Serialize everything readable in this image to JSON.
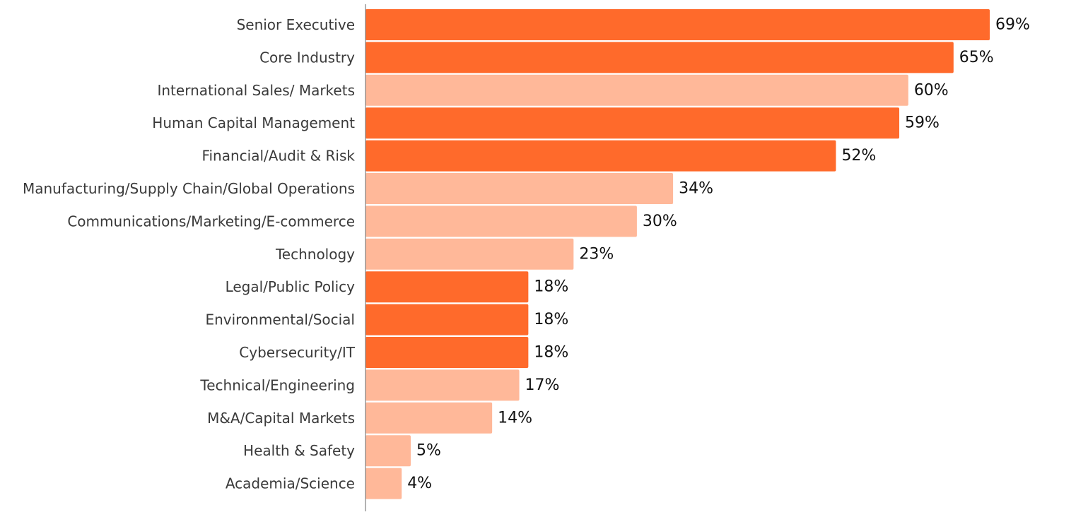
{
  "chart_data": {
    "type": "bar",
    "orientation": "horizontal",
    "categories": [
      "Senior Executive",
      "Core Industry",
      "International Sales/ Markets",
      "Human Capital Management",
      "Financial/Audit & Risk",
      "Manufacturing/Supply Chain/Global Operations",
      "Communications/Marketing/E-commerce",
      "Technology",
      "Legal/Public Policy",
      "Environmental/Social",
      "Cybersecurity/IT",
      "Technical/Engineering",
      "M&A/Capital Markets",
      "Health & Safety",
      "Academia/Science"
    ],
    "values": [
      69,
      65,
      60,
      59,
      52,
      34,
      30,
      23,
      18,
      18,
      18,
      17,
      14,
      5,
      4
    ],
    "value_labels": [
      "69%",
      "65%",
      "60%",
      "59%",
      "52%",
      "34%",
      "30%",
      "23%",
      "18%",
      "18%",
      "18%",
      "17%",
      "14%",
      "5%",
      "4%"
    ],
    "highlighted": [
      true,
      true,
      false,
      true,
      true,
      false,
      false,
      false,
      true,
      true,
      true,
      false,
      false,
      false,
      false
    ],
    "colors": {
      "highlight": "#FF6A2B",
      "normal": "#FFB899",
      "axis": "#808080"
    },
    "title": "",
    "xlabel": "",
    "ylabel": "",
    "xlim": [
      0,
      69
    ],
    "grid": false,
    "legend": "none"
  }
}
